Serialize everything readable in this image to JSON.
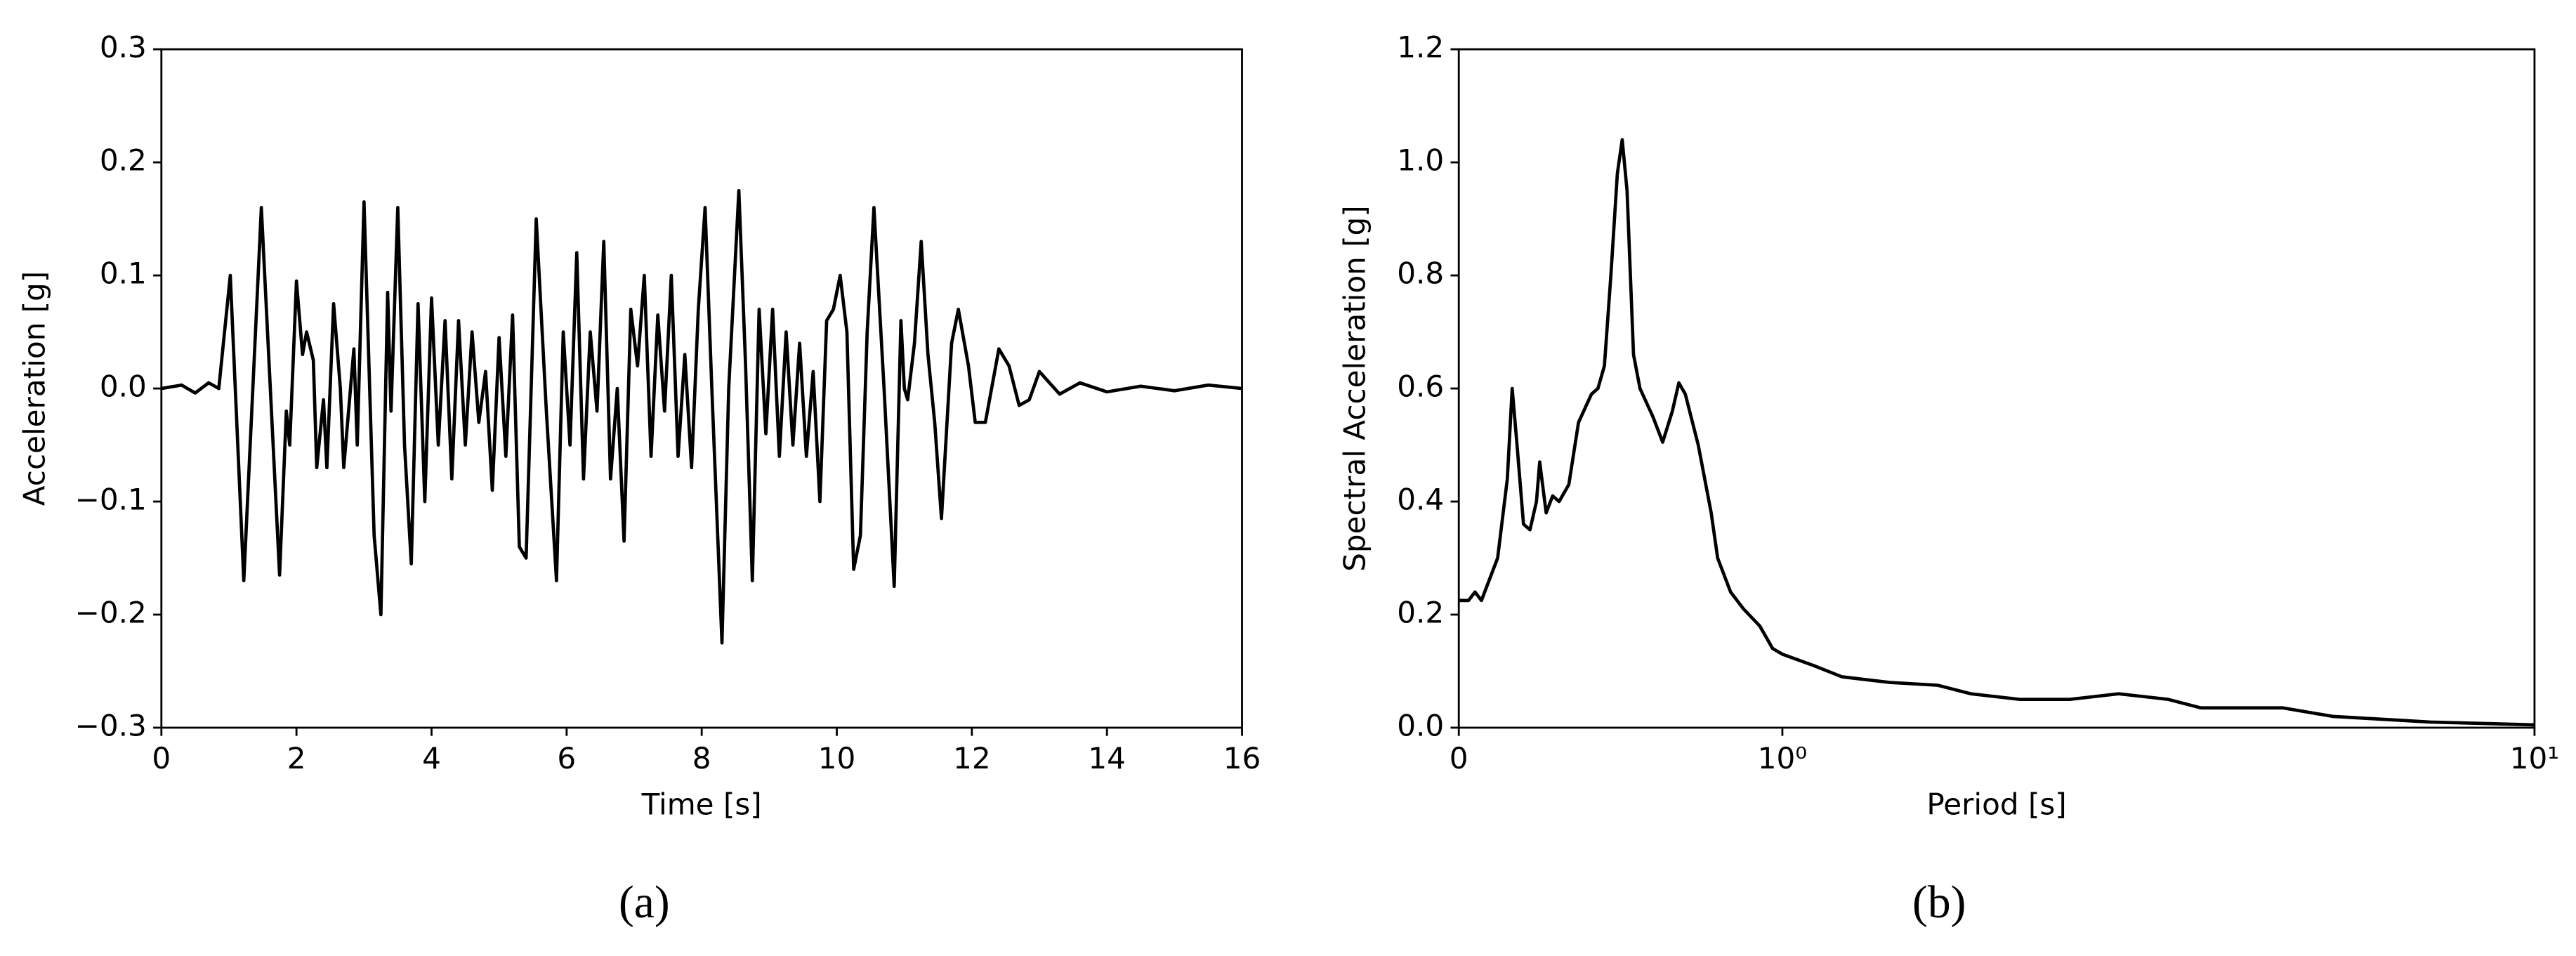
{
  "chart_data": [
    {
      "type": "line",
      "xlabel": "Time [s]",
      "ylabel": "Acceleration [g]",
      "panel_label": "(a)",
      "color": "#000000",
      "x": [
        0,
        0.3,
        0.5,
        0.7,
        0.85,
        1.02,
        1.22,
        1.48,
        1.75,
        1.85,
        1.9,
        2.0,
        2.09,
        2.15,
        2.25,
        2.3,
        2.4,
        2.45,
        2.55,
        2.65,
        2.7,
        2.85,
        2.9,
        3.0,
        3.15,
        3.25,
        3.35,
        3.4,
        3.5,
        3.6,
        3.7,
        3.8,
        3.9,
        4.0,
        4.1,
        4.2,
        4.3,
        4.4,
        4.5,
        4.6,
        4.7,
        4.8,
        4.9,
        5.0,
        5.1,
        5.2,
        5.3,
        5.4,
        5.55,
        5.7,
        5.85,
        5.95,
        6.05,
        6.15,
        6.25,
        6.35,
        6.45,
        6.55,
        6.65,
        6.75,
        6.85,
        6.95,
        7.05,
        7.15,
        7.25,
        7.35,
        7.45,
        7.55,
        7.65,
        7.75,
        7.85,
        7.95,
        8.05,
        8.15,
        8.3,
        8.4,
        8.55,
        8.65,
        8.75,
        8.85,
        8.95,
        9.05,
        9.15,
        9.25,
        9.35,
        9.45,
        9.55,
        9.65,
        9.75,
        9.85,
        9.95,
        10.05,
        10.15,
        10.25,
        10.35,
        10.45,
        10.55,
        10.7,
        10.85,
        10.95,
        11.0,
        11.05,
        11.15,
        11.25,
        11.35,
        11.45,
        11.55,
        11.7,
        11.8,
        11.95,
        12.05,
        12.2,
        12.4,
        12.55,
        12.7,
        12.85,
        13.0,
        13.15,
        13.3,
        13.6,
        14.0,
        14.5,
        15.0,
        15.5,
        16.0
      ],
      "values": [
        0,
        0.003,
        -0.004,
        0.005,
        0.0,
        0.1,
        -0.17,
        0.16,
        -0.165,
        -0.02,
        -0.05,
        0.095,
        0.03,
        0.05,
        0.025,
        -0.07,
        -0.01,
        -0.07,
        0.075,
        0.0,
        -0.07,
        0.035,
        -0.05,
        0.165,
        -0.13,
        -0.2,
        0.085,
        -0.02,
        0.16,
        -0.05,
        -0.155,
        0.075,
        -0.1,
        0.08,
        -0.05,
        0.06,
        -0.08,
        0.06,
        -0.05,
        0.05,
        -0.03,
        0.015,
        -0.09,
        0.045,
        -0.06,
        0.065,
        -0.14,
        -0.15,
        0.15,
        -0.02,
        -0.17,
        0.05,
        -0.05,
        0.12,
        -0.08,
        0.05,
        -0.02,
        0.13,
        -0.08,
        0.0,
        -0.135,
        0.07,
        0.02,
        0.1,
        -0.06,
        0.065,
        -0.02,
        0.1,
        -0.06,
        0.03,
        -0.07,
        0.07,
        0.16,
        0.0,
        -0.225,
        0.0,
        0.175,
        0.02,
        -0.17,
        0.07,
        -0.04,
        0.07,
        -0.06,
        0.05,
        -0.05,
        0.04,
        -0.06,
        0.015,
        -0.1,
        0.06,
        0.07,
        0.1,
        0.05,
        -0.16,
        -0.13,
        0.05,
        0.16,
        0.0,
        -0.175,
        0.06,
        0.0,
        -0.01,
        0.04,
        0.13,
        0.03,
        -0.03,
        -0.115,
        0.04,
        0.07,
        0.02,
        -0.03,
        -0.03,
        0.035,
        0.02,
        -0.015,
        -0.01,
        0.015,
        0.005,
        -0.005,
        0.005,
        -0.003,
        0.002,
        -0.002,
        0.003,
        0.0
      ],
      "xlim": [
        0,
        16
      ],
      "xticks": [
        0,
        2,
        4,
        6,
        8,
        10,
        12,
        14,
        16
      ],
      "ylim": [
        -0.3,
        0.3
      ],
      "yticks": [
        {
          "value": -0.3,
          "label": "−0.3"
        },
        {
          "value": -0.2,
          "label": "−0.2"
        },
        {
          "value": -0.1,
          "label": "−0.1"
        },
        {
          "value": 0,
          "label": "0.0"
        },
        0.1,
        0.2,
        0.3
      ]
    },
    {
      "type": "line",
      "xlabel": "Period [s]",
      "ylabel": "Spectral Acceleration [g]",
      "panel_label": "(b)",
      "color": "#000000",
      "xscale": "symlog",
      "x": [
        0,
        0.03,
        0.05,
        0.07,
        0.1,
        0.12,
        0.15,
        0.165,
        0.18,
        0.2,
        0.22,
        0.24,
        0.25,
        0.27,
        0.29,
        0.31,
        0.34,
        0.37,
        0.41,
        0.43,
        0.45,
        0.47,
        0.49,
        0.505,
        0.52,
        0.54,
        0.56,
        0.6,
        0.63,
        0.66,
        0.68,
        0.7,
        0.74,
        0.78,
        0.8,
        0.84,
        0.88,
        0.93,
        0.97,
        1.0,
        1.1,
        1.2,
        1.39,
        1.61,
        1.78,
        2.07,
        2.41,
        2.8,
        3.26,
        3.6,
        4.19,
        4.63,
        5.39,
        6.25,
        7.27,
        10
      ],
      "values": [
        0.225,
        0.225,
        0.24,
        0.225,
        0.27,
        0.3,
        0.44,
        0.6,
        0.5,
        0.36,
        0.35,
        0.4,
        0.47,
        0.38,
        0.41,
        0.4,
        0.43,
        0.54,
        0.59,
        0.6,
        0.64,
        0.8,
        0.98,
        1.04,
        0.95,
        0.66,
        0.6,
        0.55,
        0.505,
        0.56,
        0.61,
        0.59,
        0.5,
        0.38,
        0.3,
        0.24,
        0.21,
        0.18,
        0.14,
        0.13,
        0.11,
        0.09,
        0.08,
        0.075,
        0.06,
        0.05,
        0.05,
        0.06,
        0.05,
        0.035,
        0.035,
        0.035,
        0.02,
        0.015,
        0.01,
        0.005
      ],
      "xlim": [
        0,
        10
      ],
      "xticks": [
        0,
        {
          "value": 1,
          "label": "10⁰"
        },
        {
          "value": 10,
          "label": "10¹"
        }
      ],
      "ylim": [
        0,
        1.2
      ],
      "yticks": [
        {
          "value": 0,
          "label": "0.0"
        },
        0.2,
        0.4,
        0.6,
        0.8,
        {
          "value": 1,
          "label": "1.0"
        },
        1.2
      ]
    }
  ]
}
